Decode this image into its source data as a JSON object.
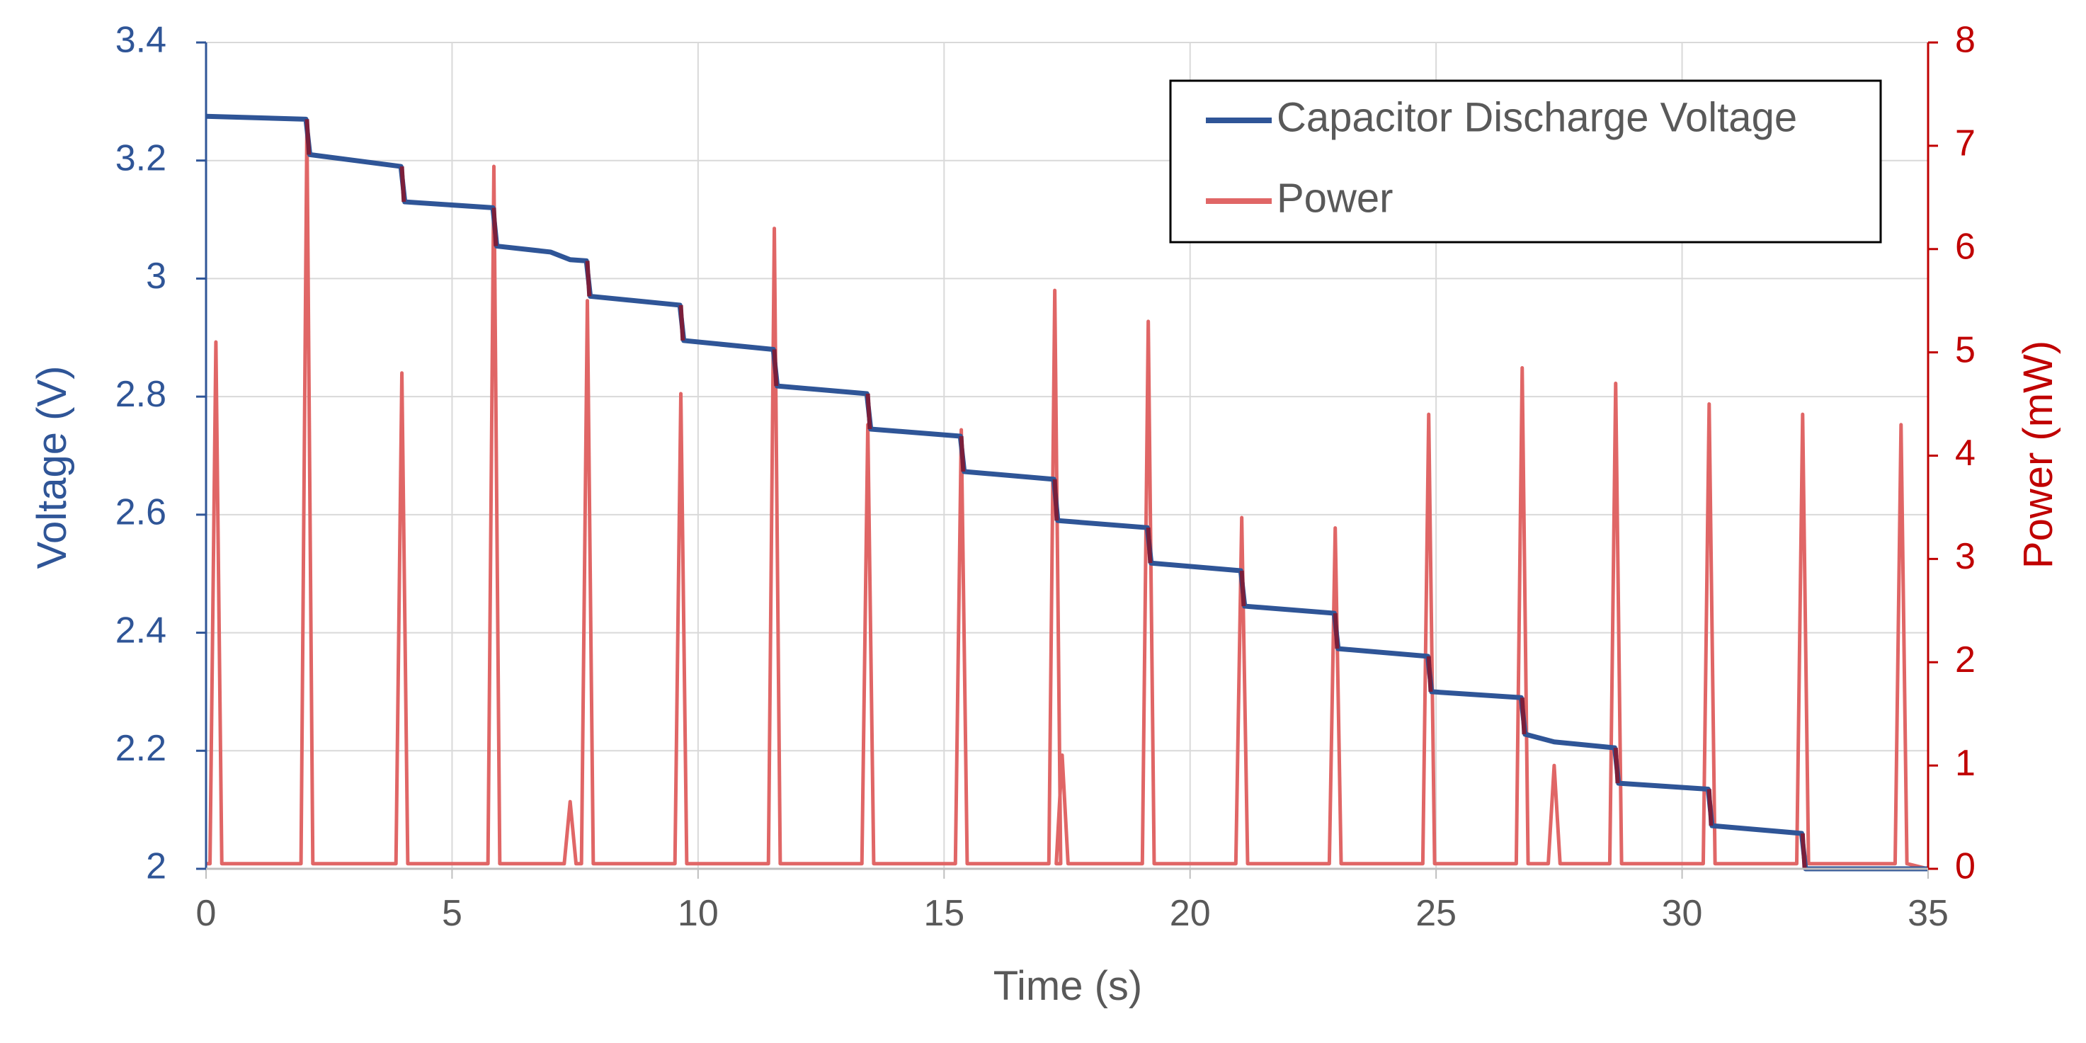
{
  "chart_data": {
    "type": "line",
    "xlabel": "Time (s)",
    "ylabel_left": "Voltage (V)",
    "ylabel_right": "Power (mW)",
    "xlim": [
      0,
      35
    ],
    "ylim_left": [
      2,
      3.4
    ],
    "ylim_right": [
      0,
      8
    ],
    "x_ticks": [
      "0",
      "5",
      "10",
      "15",
      "20",
      "25",
      "30",
      "35"
    ],
    "y_left_ticks": [
      "2",
      "2.2",
      "2.4",
      "2.6",
      "2.8",
      "3",
      "3.2",
      "3.4"
    ],
    "y_right_ticks": [
      "0",
      "1",
      "2",
      "3",
      "4",
      "5",
      "6",
      "7",
      "8"
    ],
    "grid": true,
    "legend_position": "top-right",
    "colors": {
      "voltage": "#2F5597",
      "power": "#E06666",
      "right_axis": "#C00000",
      "overlap": "#7B1F3A",
      "grid": "#D9D9D9"
    },
    "series": [
      {
        "name": "Capacitor Discharge Voltage",
        "axis": "left",
        "steps": [
          {
            "t": 2.05,
            "before": 3.27,
            "after": 3.21
          },
          {
            "t": 3.98,
            "before": 3.19,
            "after": 3.13
          },
          {
            "t": 5.85,
            "before": 3.12,
            "after": 3.055
          },
          {
            "t": 7.75,
            "before": 3.03,
            "after": 2.97
          },
          {
            "t": 9.65,
            "before": 2.955,
            "after": 2.895
          },
          {
            "t": 11.55,
            "before": 2.88,
            "after": 2.818
          },
          {
            "t": 13.45,
            "before": 2.805,
            "after": 2.745
          },
          {
            "t": 15.35,
            "before": 2.733,
            "after": 2.673
          },
          {
            "t": 17.25,
            "before": 2.66,
            "after": 2.59
          },
          {
            "t": 19.15,
            "before": 2.578,
            "after": 2.518
          },
          {
            "t": 21.05,
            "before": 2.505,
            "after": 2.445
          },
          {
            "t": 22.95,
            "before": 2.433,
            "after": 2.373
          },
          {
            "t": 24.85,
            "before": 2.36,
            "after": 2.3
          },
          {
            "t": 26.75,
            "before": 2.29,
            "after": 2.228
          },
          {
            "t": 28.65,
            "before": 2.205,
            "after": 2.145
          },
          {
            "t": 30.55,
            "before": 2.135,
            "after": 2.073
          },
          {
            "t": 32.45,
            "before": 2.06,
            "after": 2.0
          }
        ],
        "start": {
          "t": 0,
          "v": 3.275
        },
        "extra_points": [
          {
            "t": 7.0,
            "v": 3.045
          },
          {
            "t": 7.4,
            "v": 3.032
          },
          {
            "t": 17.3,
            "v": 2.6
          },
          {
            "t": 27.4,
            "v": 2.215
          },
          {
            "t": 35,
            "v": 2.0
          }
        ]
      },
      {
        "name": "Power",
        "axis": "right",
        "baseline": 0.05,
        "spikes": [
          {
            "t": 0.2,
            "p": 5.1
          },
          {
            "t": 2.05,
            "p": 7.2
          },
          {
            "t": 3.98,
            "p": 4.8
          },
          {
            "t": 5.85,
            "p": 6.8
          },
          {
            "t": 7.4,
            "p": 0.65
          },
          {
            "t": 7.75,
            "p": 5.5
          },
          {
            "t": 9.65,
            "p": 4.6
          },
          {
            "t": 11.55,
            "p": 6.2
          },
          {
            "t": 13.45,
            "p": 4.3
          },
          {
            "t": 15.35,
            "p": 4.25
          },
          {
            "t": 17.25,
            "p": 5.6
          },
          {
            "t": 17.4,
            "p": 1.1
          },
          {
            "t": 19.15,
            "p": 5.3
          },
          {
            "t": 21.05,
            "p": 3.4
          },
          {
            "t": 22.95,
            "p": 3.3
          },
          {
            "t": 24.85,
            "p": 4.4
          },
          {
            "t": 26.75,
            "p": 4.85
          },
          {
            "t": 27.4,
            "p": 1.0
          },
          {
            "t": 28.65,
            "p": 4.7
          },
          {
            "t": 30.55,
            "p": 4.5
          },
          {
            "t": 32.45,
            "p": 4.4
          },
          {
            "t": 34.45,
            "p": 4.3
          }
        ]
      }
    ]
  }
}
